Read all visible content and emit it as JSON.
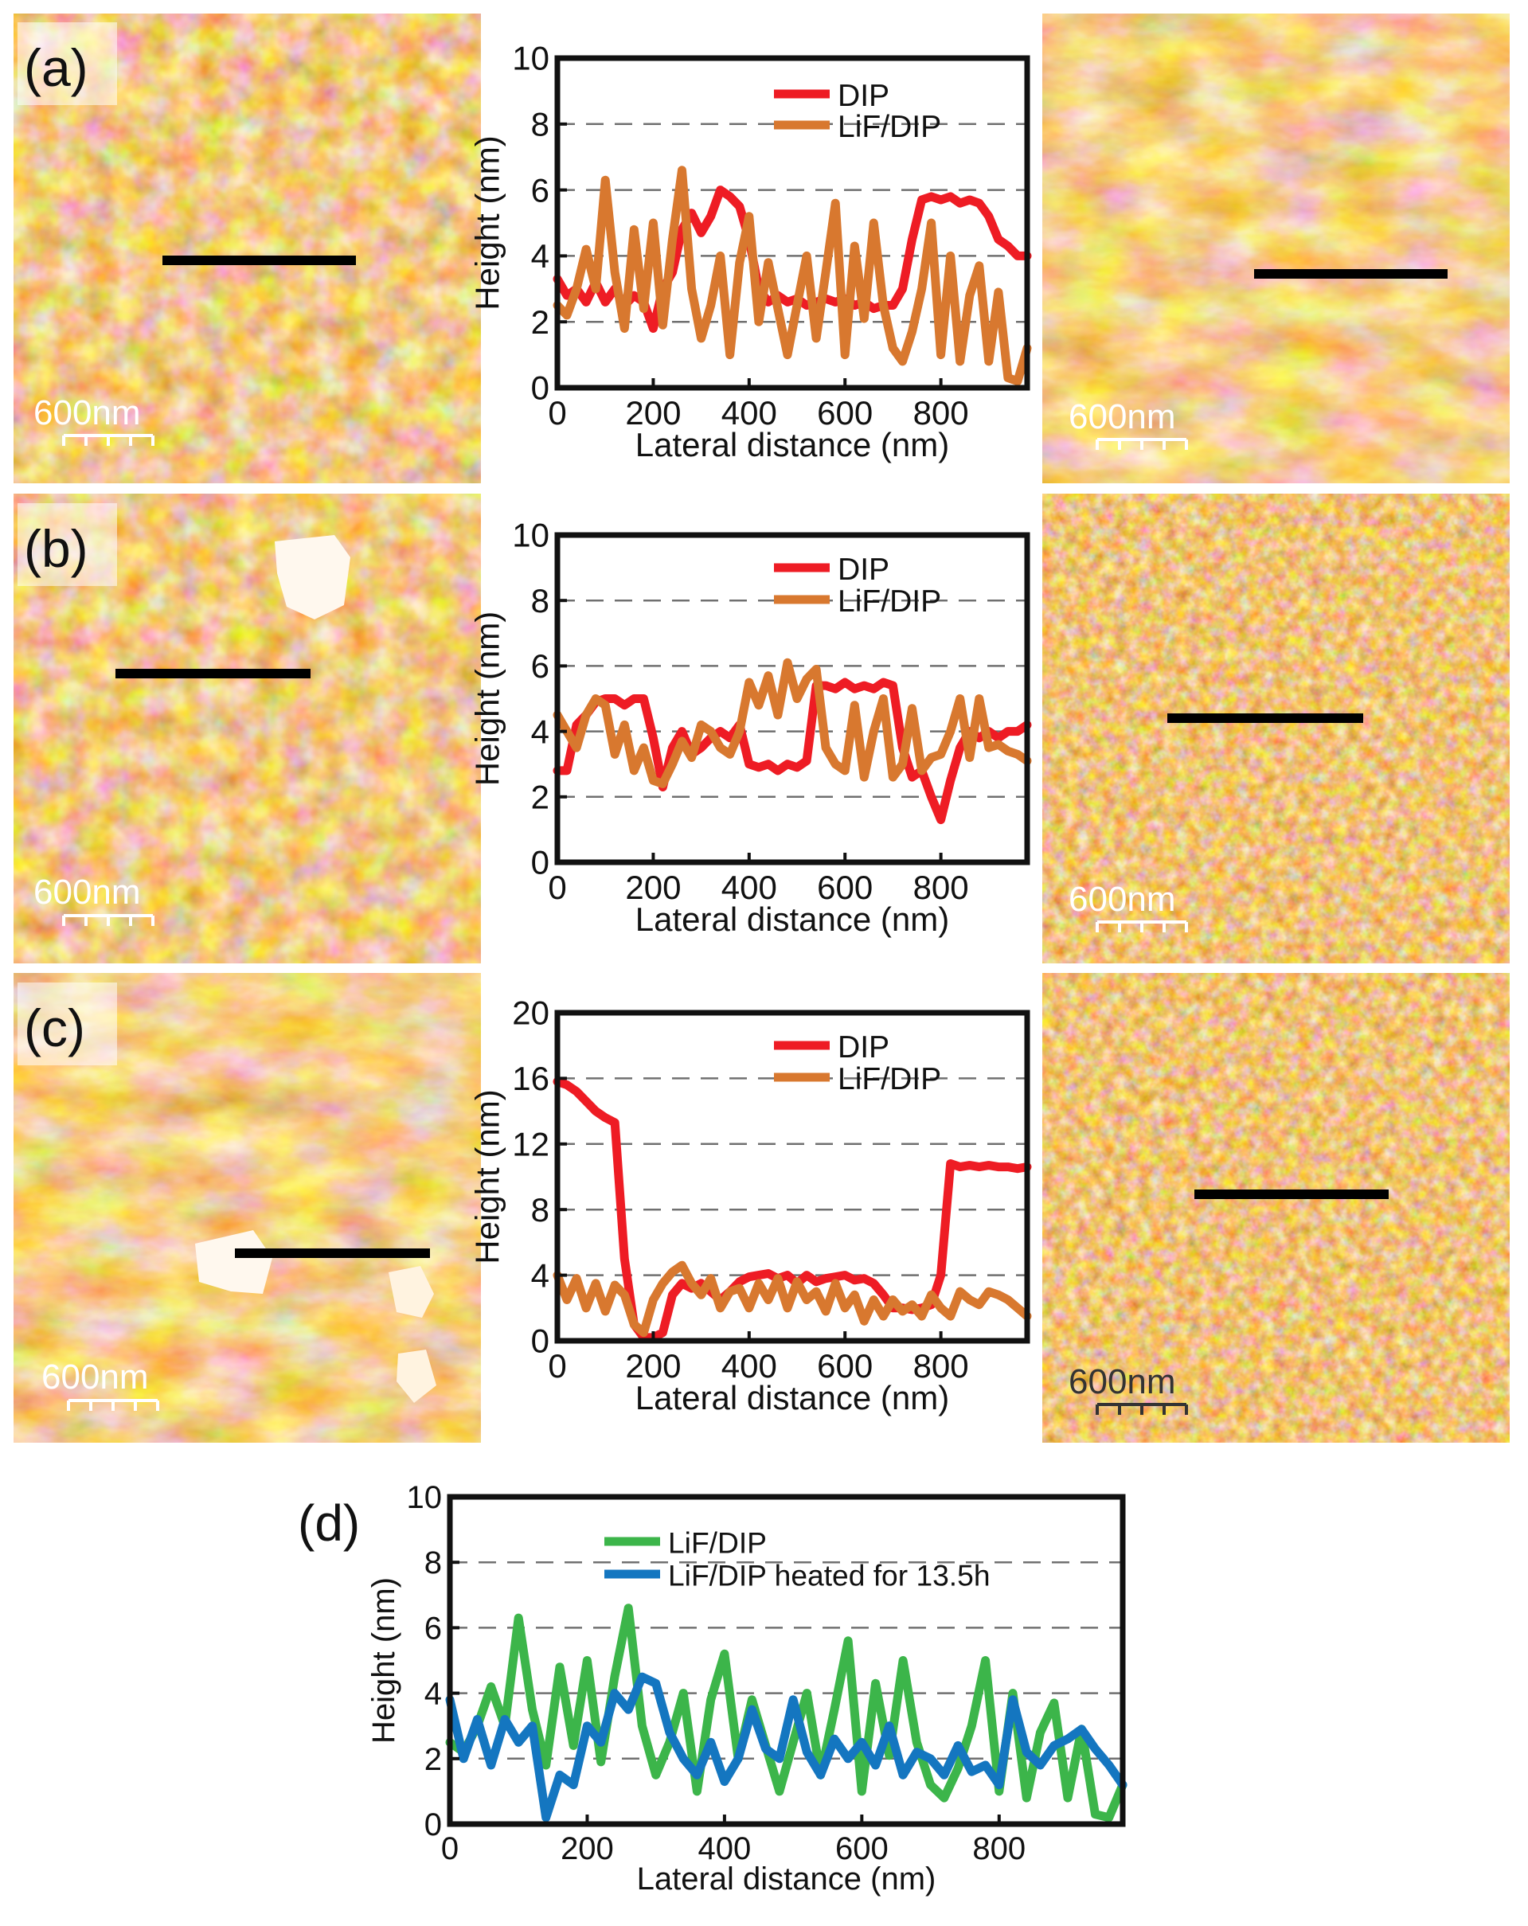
{
  "figure": {
    "colors": {
      "DIP": "#ee1c24",
      "LiF_DIP": "#d8782f",
      "LiF_DIP_d": "#3cb54a",
      "heated": "#1476c0",
      "scale_dark": "#333333"
    }
  },
  "panels": [
    {
      "label": "(a)",
      "scale_left": "600nm",
      "scale_right": "600nm"
    },
    {
      "label": "(b)",
      "scale_left": "600nm",
      "scale_right": "600nm"
    },
    {
      "label": "(c)",
      "scale_left": "600nm",
      "scale_right": "600nm"
    }
  ],
  "panel_d": {
    "label": "(d)"
  },
  "chart_data": [
    {
      "type": "line",
      "panel": "(a)",
      "xlabel": "Lateral distance (nm)",
      "ylabel": "Height (nm)",
      "xlim": [
        0,
        980
      ],
      "ylim": [
        0,
        10
      ],
      "xticks": [
        "0",
        "200",
        "400",
        "600",
        "800"
      ],
      "yticks": [
        "0",
        "2",
        "4",
        "6",
        "8",
        "10"
      ],
      "legend_position": "top-right",
      "series": [
        {
          "name": "DIP",
          "color": "#ee1c24",
          "x": [
            0,
            20,
            40,
            60,
            80,
            100,
            120,
            140,
            160,
            180,
            200,
            220,
            240,
            260,
            280,
            300,
            320,
            340,
            360,
            380,
            400,
            420,
            440,
            460,
            480,
            500,
            520,
            540,
            560,
            580,
            600,
            620,
            640,
            660,
            680,
            700,
            720,
            740,
            760,
            780,
            800,
            820,
            840,
            860,
            880,
            900,
            920,
            940,
            960,
            980
          ],
          "y": [
            3.3,
            2.8,
            3.0,
            2.6,
            3.2,
            2.6,
            3.0,
            2.5,
            2.8,
            2.6,
            1.8,
            3.0,
            3.5,
            4.8,
            5.3,
            4.7,
            5.2,
            6.0,
            5.8,
            5.5,
            4.5,
            3.0,
            2.6,
            2.8,
            2.6,
            2.7,
            2.5,
            2.6,
            2.7,
            2.6,
            2.7,
            2.5,
            2.6,
            2.4,
            2.5,
            2.5,
            3.0,
            4.5,
            5.7,
            5.8,
            5.7,
            5.8,
            5.6,
            5.7,
            5.6,
            5.2,
            4.5,
            4.3,
            4.0,
            4.0
          ]
        },
        {
          "name": "LiF/DIP",
          "color": "#d8782f",
          "x": [
            0,
            20,
            40,
            60,
            80,
            100,
            120,
            140,
            160,
            180,
            200,
            220,
            240,
            260,
            280,
            300,
            320,
            340,
            360,
            380,
            400,
            420,
            440,
            460,
            480,
            500,
            520,
            540,
            560,
            580,
            600,
            620,
            640,
            660,
            680,
            700,
            720,
            740,
            760,
            780,
            800,
            820,
            840,
            860,
            880,
            900,
            920,
            940,
            960,
            980
          ],
          "y": [
            2.5,
            2.2,
            3.0,
            4.2,
            3.0,
            6.3,
            3.5,
            1.8,
            4.8,
            2.4,
            5.0,
            1.9,
            4.5,
            6.6,
            3.0,
            1.5,
            2.5,
            4.0,
            1.0,
            3.8,
            5.2,
            2.0,
            3.8,
            2.4,
            1.0,
            2.5,
            4.0,
            1.5,
            3.5,
            5.6,
            1.0,
            4.3,
            2.1,
            5.0,
            2.5,
            1.2,
            0.8,
            1.7,
            3.0,
            5.0,
            1.0,
            4.0,
            0.8,
            2.8,
            3.7,
            0.8,
            2.9,
            0.3,
            0.2,
            1.2
          ]
        }
      ]
    },
    {
      "type": "line",
      "panel": "(b)",
      "xlabel": "Lateral distance (nm)",
      "ylabel": "Height (nm)",
      "xlim": [
        0,
        980
      ],
      "ylim": [
        0,
        10
      ],
      "xticks": [
        "0",
        "200",
        "400",
        "600",
        "800"
      ],
      "yticks": [
        "0",
        "2",
        "4",
        "6",
        "8",
        "10"
      ],
      "legend_position": "top-right",
      "series": [
        {
          "name": "DIP",
          "color": "#ee1c24",
          "x": [
            0,
            20,
            40,
            60,
            80,
            100,
            120,
            140,
            160,
            180,
            200,
            220,
            240,
            260,
            280,
            300,
            320,
            340,
            360,
            380,
            400,
            420,
            440,
            460,
            480,
            500,
            520,
            540,
            560,
            580,
            600,
            620,
            640,
            660,
            680,
            700,
            720,
            740,
            760,
            780,
            800,
            820,
            840,
            860,
            880,
            900,
            920,
            940,
            960,
            980
          ],
          "y": [
            2.8,
            2.8,
            4.2,
            4.5,
            4.9,
            5.0,
            5.0,
            4.8,
            5.0,
            5.0,
            3.8,
            2.3,
            3.5,
            4.0,
            3.3,
            3.5,
            3.8,
            4.0,
            3.8,
            4.2,
            3.0,
            2.9,
            3.0,
            2.8,
            3.0,
            2.9,
            3.1,
            5.4,
            5.4,
            5.3,
            5.5,
            5.3,
            5.4,
            5.3,
            5.5,
            5.4,
            3.5,
            2.6,
            2.8,
            2.0,
            1.3,
            2.5,
            3.5,
            4.0,
            3.8,
            4.0,
            3.8,
            4.0,
            4.0,
            4.2
          ]
        },
        {
          "name": "LiF/DIP",
          "color": "#d8782f",
          "x": [
            0,
            20,
            40,
            60,
            80,
            100,
            120,
            140,
            160,
            180,
            200,
            220,
            240,
            260,
            280,
            300,
            320,
            340,
            360,
            380,
            400,
            420,
            440,
            460,
            480,
            500,
            520,
            540,
            560,
            580,
            600,
            620,
            640,
            660,
            680,
            700,
            720,
            740,
            760,
            780,
            800,
            820,
            840,
            860,
            880,
            900,
            920,
            940,
            960,
            980
          ],
          "y": [
            4.5,
            4.0,
            3.5,
            4.5,
            5.0,
            4.8,
            3.3,
            4.2,
            2.8,
            3.5,
            2.5,
            2.4,
            3.0,
            3.7,
            3.2,
            4.2,
            4.0,
            3.5,
            3.3,
            4.0,
            5.5,
            4.8,
            5.7,
            4.5,
            6.1,
            5.0,
            5.6,
            5.9,
            3.5,
            3.0,
            2.8,
            4.8,
            2.6,
            4.0,
            5.0,
            2.6,
            3.0,
            4.7,
            2.8,
            3.2,
            3.3,
            4.0,
            5.0,
            3.2,
            5.0,
            3.5,
            3.6,
            3.4,
            3.3,
            3.1
          ]
        }
      ]
    },
    {
      "type": "line",
      "panel": "(c)",
      "xlabel": "Lateral distance (nm)",
      "ylabel": "Height (nm)",
      "xlim": [
        0,
        980
      ],
      "ylim": [
        0,
        20
      ],
      "xticks": [
        "0",
        "200",
        "400",
        "600",
        "800"
      ],
      "yticks": [
        "0",
        "4",
        "8",
        "12",
        "16",
        "20"
      ],
      "legend_position": "top-right",
      "series": [
        {
          "name": "DIP",
          "color": "#ee1c24",
          "x": [
            0,
            20,
            40,
            60,
            80,
            100,
            120,
            140,
            160,
            180,
            200,
            220,
            240,
            260,
            280,
            300,
            320,
            340,
            360,
            380,
            400,
            420,
            440,
            460,
            480,
            500,
            520,
            540,
            560,
            580,
            600,
            620,
            640,
            660,
            680,
            700,
            720,
            740,
            760,
            780,
            800,
            820,
            840,
            860,
            880,
            900,
            920,
            940,
            960,
            980
          ],
          "y": [
            15.8,
            15.6,
            15.2,
            14.6,
            14.0,
            13.6,
            13.3,
            5.0,
            1.0,
            0.2,
            0.2,
            0.5,
            2.8,
            3.5,
            3.2,
            3.5,
            3.0,
            2.5,
            3.0,
            3.6,
            3.9,
            4.0,
            4.1,
            3.8,
            4.0,
            3.5,
            4.0,
            3.6,
            3.8,
            3.9,
            4.0,
            3.7,
            3.8,
            3.5,
            2.8,
            2.0,
            2.0,
            1.9,
            2.0,
            2.2,
            4.0,
            10.8,
            10.6,
            10.7,
            10.6,
            10.7,
            10.6,
            10.6,
            10.5,
            10.6
          ]
        },
        {
          "name": "LiF/DIP",
          "color": "#d8782f",
          "x": [
            0,
            20,
            40,
            60,
            80,
            100,
            120,
            140,
            160,
            180,
            200,
            220,
            240,
            260,
            280,
            300,
            320,
            340,
            360,
            380,
            400,
            420,
            440,
            460,
            480,
            500,
            520,
            540,
            560,
            580,
            600,
            620,
            640,
            660,
            680,
            700,
            720,
            740,
            760,
            780,
            800,
            820,
            840,
            860,
            880,
            900,
            920,
            940,
            960,
            980
          ],
          "y": [
            4.0,
            2.5,
            3.8,
            2.0,
            3.5,
            1.8,
            3.4,
            2.8,
            1.0,
            0.5,
            2.5,
            3.5,
            4.2,
            4.6,
            3.5,
            2.8,
            3.8,
            2.0,
            3.0,
            3.2,
            2.0,
            3.5,
            2.5,
            3.8,
            2.0,
            3.6,
            2.5,
            3.0,
            1.8,
            3.5,
            2.0,
            2.8,
            1.2,
            2.5,
            1.5,
            2.5,
            1.8,
            2.2,
            1.5,
            2.8,
            2.0,
            1.5,
            3.0,
            2.5,
            2.2,
            3.0,
            2.8,
            2.5,
            2.0,
            1.5
          ]
        }
      ]
    },
    {
      "type": "line",
      "panel": "(d)",
      "xlabel": "Lateral distance (nm)",
      "ylabel": "Height (nm)",
      "xlim": [
        0,
        980
      ],
      "ylim": [
        0,
        10
      ],
      "xticks": [
        "0",
        "200",
        "400",
        "600",
        "800"
      ],
      "yticks": [
        "0",
        "2",
        "4",
        "6",
        "8",
        "10"
      ],
      "legend_position": "top-center",
      "series": [
        {
          "name": "LiF/DIP",
          "color": "#3cb54a",
          "x": [
            0,
            20,
            40,
            60,
            80,
            100,
            120,
            140,
            160,
            180,
            200,
            220,
            240,
            260,
            280,
            300,
            320,
            340,
            360,
            380,
            400,
            420,
            440,
            460,
            480,
            500,
            520,
            540,
            560,
            580,
            600,
            620,
            640,
            660,
            680,
            700,
            720,
            740,
            760,
            780,
            800,
            820,
            840,
            860,
            880,
            900,
            920,
            940,
            960,
            980
          ],
          "y": [
            2.5,
            2.2,
            3.0,
            4.2,
            3.0,
            6.3,
            3.5,
            1.8,
            4.8,
            2.4,
            5.0,
            1.9,
            4.5,
            6.6,
            3.0,
            1.5,
            2.5,
            4.0,
            1.0,
            3.8,
            5.2,
            2.0,
            3.8,
            2.4,
            1.0,
            2.5,
            4.0,
            1.5,
            3.5,
            5.6,
            1.0,
            4.3,
            2.1,
            5.0,
            2.5,
            1.2,
            0.8,
            1.7,
            3.0,
            5.0,
            1.0,
            4.0,
            0.8,
            2.8,
            3.7,
            0.8,
            2.9,
            0.3,
            0.2,
            1.2
          ]
        },
        {
          "name": "LiF/DIP heated for 13.5h",
          "color": "#1476c0",
          "x": [
            0,
            20,
            40,
            60,
            80,
            100,
            120,
            140,
            160,
            180,
            200,
            220,
            240,
            260,
            280,
            300,
            320,
            340,
            360,
            380,
            400,
            420,
            440,
            460,
            480,
            500,
            520,
            540,
            560,
            580,
            600,
            620,
            640,
            660,
            680,
            700,
            720,
            740,
            760,
            780,
            800,
            820,
            840,
            860,
            880,
            900,
            920,
            940,
            960,
            980
          ],
          "y": [
            3.8,
            2.0,
            3.2,
            1.8,
            3.2,
            2.5,
            3.0,
            0.2,
            1.5,
            1.2,
            3.0,
            2.5,
            4.0,
            3.5,
            4.5,
            4.3,
            2.8,
            2.0,
            1.5,
            2.5,
            1.3,
            2.0,
            3.5,
            2.3,
            2.0,
            3.8,
            2.2,
            1.5,
            2.6,
            2.0,
            2.5,
            1.8,
            3.0,
            1.5,
            2.2,
            2.0,
            1.5,
            2.4,
            1.6,
            1.8,
            1.2,
            3.8,
            2.2,
            1.8,
            2.4,
            2.6,
            2.9,
            2.3,
            1.8,
            1.2
          ]
        }
      ]
    }
  ]
}
